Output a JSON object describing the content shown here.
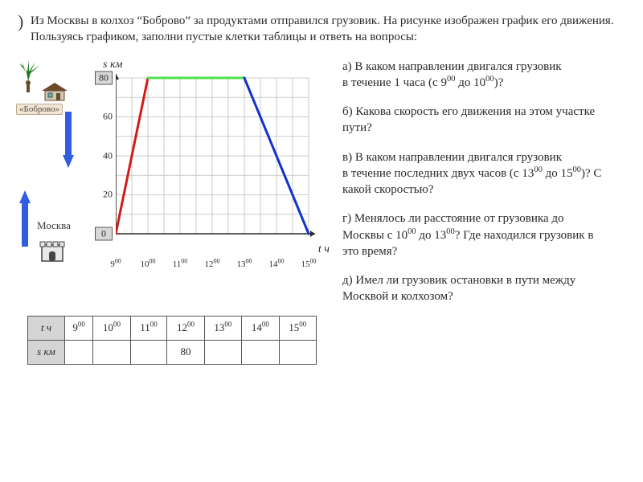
{
  "intro": "Из Москвы в колхоз “Боброво” за продуктами отправился грузовик. На рисунке изображен график его движения. Пользуясь графиком, заполни пустые клетки таблицы и ответь на вопросы:",
  "labels": {
    "y_axis": "s км",
    "x_axis": "t ч",
    "bobrovo": "«Боброво»",
    "moscow": "Москва"
  },
  "chart": {
    "type": "line",
    "background_color": "#ffffff",
    "grid_color": "#bdbdbd",
    "axis_color": "#2a2a2a",
    "xlim": [
      9,
      15
    ],
    "ylim": [
      0,
      80
    ],
    "x_ticks": [
      "9⁰⁰",
      "10⁰⁰",
      "11⁰⁰",
      "12⁰⁰",
      "13⁰⁰",
      "14⁰⁰",
      "15⁰⁰"
    ],
    "x_tick_values": [
      9,
      10,
      11,
      12,
      13,
      14,
      15
    ],
    "y_ticks": [
      0,
      20,
      40,
      60,
      80
    ],
    "y_tick_boxed": [
      0,
      80
    ],
    "grid_x_count": 12,
    "grid_y_count": 8,
    "segments": [
      {
        "name": "ascent",
        "color": "#d21a1a",
        "width": 3,
        "points": [
          [
            9,
            0
          ],
          [
            10,
            80
          ]
        ]
      },
      {
        "name": "flat",
        "color": "#4fe24f",
        "width": 3,
        "points": [
          [
            10,
            80
          ],
          [
            13,
            80
          ]
        ]
      },
      {
        "name": "descent",
        "color": "#1030d0",
        "width": 3,
        "points": [
          [
            13,
            80
          ],
          [
            15,
            0
          ]
        ]
      }
    ]
  },
  "arrows": {
    "color": "#2f5fe0",
    "shaft_width": 8
  },
  "table": {
    "row_headers": [
      "t ч",
      "s км"
    ],
    "columns": [
      "9⁰⁰",
      "10⁰⁰",
      "11⁰⁰",
      "12⁰⁰",
      "13⁰⁰",
      "14⁰⁰",
      "15⁰⁰"
    ],
    "s_values": [
      "",
      "",
      "",
      "80",
      "",
      "",
      ""
    ]
  },
  "questions": {
    "a": "а) В каком направлении двигался грузовик в течение 1 часа (с 9⁰⁰ до 10⁰⁰)?",
    "b": "б) Какова скорость его движения на этом участке пути?",
    "c": "в) В каком направлении двигался грузовик в течение последних двух часов (с 13⁰⁰ до 15⁰⁰)? С какой скоростью?",
    "d": "г) Менялось ли расстояние от грузовика до Москвы с 10⁰⁰ до 13⁰⁰? Где находился грузовик в это время?",
    "e": "д) Имел ли грузовик остановки в пути между Москвой и колхозом?"
  },
  "icons": {
    "palm_color": "#1e7a1e",
    "house_roof": "#6b4a2a",
    "house_wall": "#cfc7b6",
    "castle_fill": "#e8e8e8",
    "castle_stroke": "#444"
  }
}
